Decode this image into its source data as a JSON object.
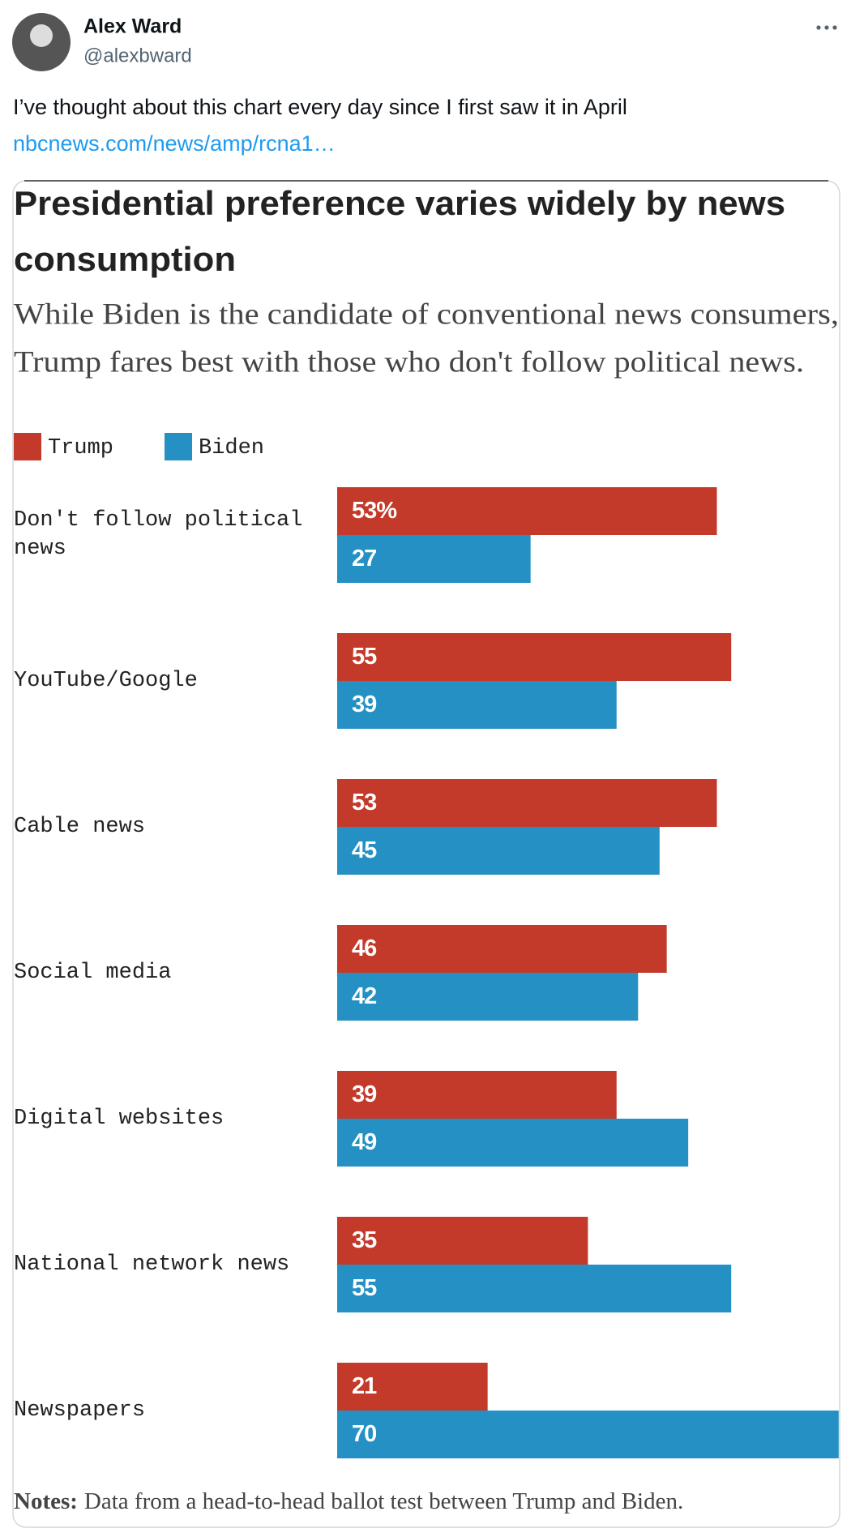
{
  "author": {
    "name": "Alex Ward",
    "handle": "@alexbward"
  },
  "text": "I’ve thought about this chart every day since I first saw it in April",
  "link": "nbcnews.com/news/amp/rcna1…",
  "chart_data": {
    "type": "bar",
    "orientation": "horizontal",
    "title": [
      "Presidential preference varies widely by news",
      "consumption"
    ],
    "subtitle": [
      "While Biden is the candidate of conventional news consumers,",
      "Trump fares best with those who don't follow political news."
    ],
    "categories": [
      "Don't follow political news",
      "YouTube/Google",
      "Cable news",
      "Social media",
      "Digital websites",
      "National network news",
      "Newspapers"
    ],
    "series": [
      {
        "name": "Trump",
        "color": "#c3392a",
        "values": [
          53,
          55,
          53,
          46,
          39,
          35,
          21
        ],
        "value_labels": [
          "53%",
          "55",
          "53",
          "46",
          "39",
          "35",
          "21"
        ]
      },
      {
        "name": "Biden",
        "color": "#2490c4",
        "values": [
          27,
          39,
          45,
          42,
          49,
          55,
          70
        ]
      }
    ],
    "notes": {
      "label": "Notes:",
      "text": "Data from a head-to-head ballot test between Trump and Biden."
    }
  }
}
